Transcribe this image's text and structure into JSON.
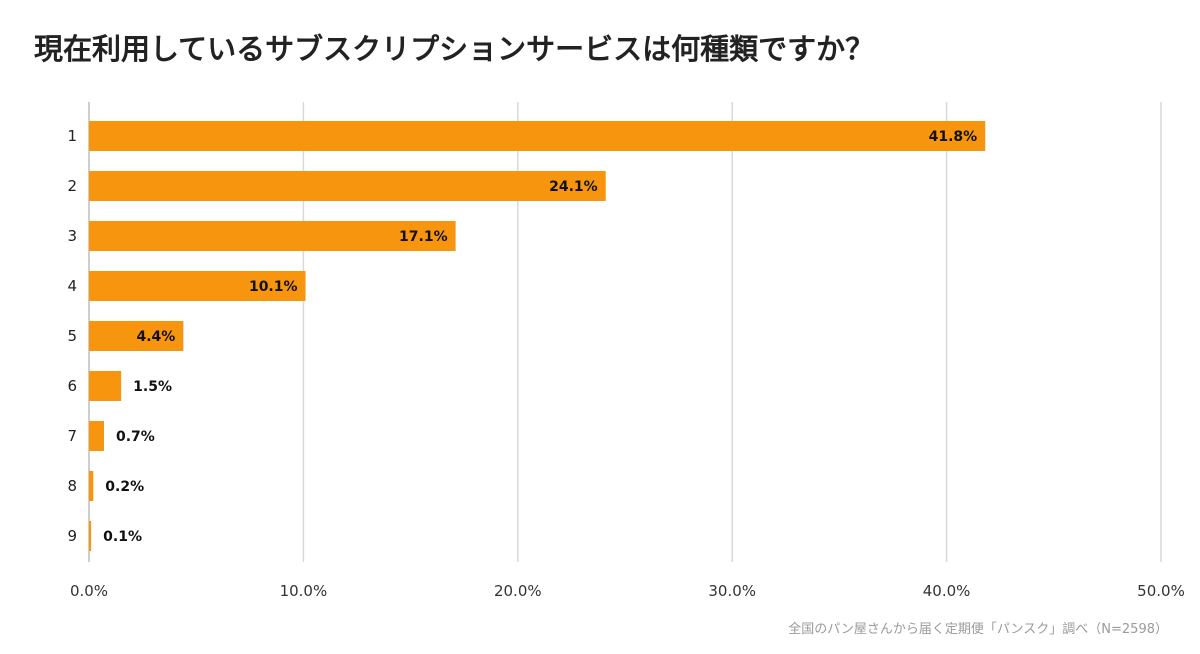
{
  "chart_data": {
    "type": "bar",
    "orientation": "horizontal",
    "title": "現在利用しているサブスクリプションサービスは何種類ですか？",
    "categories": [
      "1",
      "2",
      "3",
      "4",
      "5",
      "6",
      "7",
      "8",
      "9"
    ],
    "values": [
      41.8,
      24.1,
      17.1,
      10.1,
      4.4,
      1.5,
      0.7,
      0.2,
      0.1
    ],
    "data_labels": [
      "41.8%",
      "24.1%",
      "17.1%",
      "10.1%",
      "4.4%",
      "1.5%",
      "0.7%",
      "0.2%",
      "0.1%"
    ],
    "xlim": [
      0,
      50
    ],
    "x_ticks": [
      0,
      10,
      20,
      30,
      40,
      50
    ],
    "x_tick_labels": [
      "0.0%",
      "10.0%",
      "20.0%",
      "30.0%",
      "40.0%",
      "50.0%"
    ],
    "xlabel": "",
    "ylabel": "",
    "grid": true,
    "legend": "none",
    "bar_color": "#F7950F",
    "grid_color": "#d9d9d9",
    "source_note": "全国のパン屋さんから届く定期便「パンスク」調べ（N=2598）"
  }
}
